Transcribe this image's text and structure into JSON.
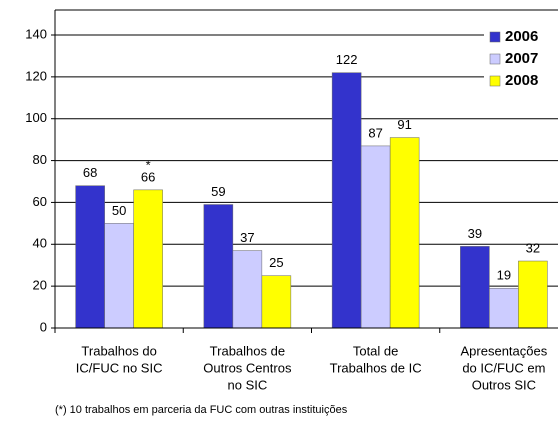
{
  "chart_data": {
    "type": "bar",
    "categories": [
      [
        "Trabalhos do",
        "IC/FUC no SIC"
      ],
      [
        "Trabalhos de",
        "Outros Centros",
        "no SIC"
      ],
      [
        "Total de",
        "Trabalhos de IC"
      ],
      [
        "Apresentações",
        "do IC/FUC em",
        "Outros SIC"
      ]
    ],
    "series": [
      {
        "name": "2006",
        "color": "#3333cc",
        "values": [
          68,
          59,
          122,
          39
        ]
      },
      {
        "name": "2007",
        "color": "#ccccff",
        "values": [
          50,
          37,
          87,
          19
        ]
      },
      {
        "name": "2008",
        "color": "#ffff00",
        "values": [
          66,
          25,
          91,
          32
        ]
      }
    ],
    "annotation": "*",
    "footnote": "(*)  10 trabalhos em parceria da FUC com outras instituições",
    "ylim": [
      0,
      140
    ],
    "yticks": [
      0,
      20,
      40,
      60,
      80,
      100,
      120,
      140
    ],
    "grid": true,
    "legend": "top-right"
  }
}
